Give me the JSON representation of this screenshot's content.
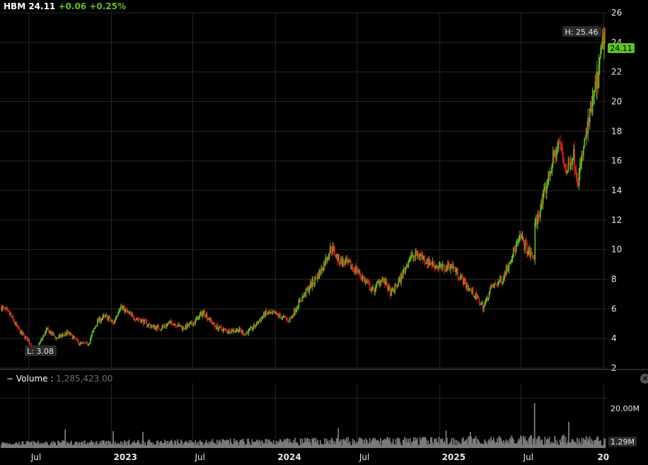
{
  "header": {
    "symbol": "HBM",
    "last": "24.11",
    "change": "+0.06",
    "change_pct": "+0.25%"
  },
  "volume_panel": {
    "collapse_icon": "−",
    "label": "Volume",
    "separator": ":",
    "value": "1,285,423.00",
    "tick_20m": "20.00M",
    "last_badge": "1.29M",
    "close_icon": "×"
  },
  "colors": {
    "up": "#5fc21f",
    "down": "#e32020",
    "grid": "#262626",
    "volume": "#7a7a7a",
    "background": "#000000",
    "last_badge": "#5fc21f"
  },
  "chart_data": {
    "type": "candlestick",
    "title": "HBM",
    "y_ticks": [
      2,
      4,
      6,
      8,
      10,
      12,
      14,
      16,
      18,
      20,
      22,
      24,
      26
    ],
    "ylim": [
      2,
      26
    ],
    "x_tick_labels": [
      "Jul",
      "2023",
      "Jul",
      "2024",
      "Jul",
      "2025",
      "Jul",
      "20"
    ],
    "x_tick_dates": [
      "2022-07-01",
      "2023-01-01",
      "2023-07-01",
      "2024-01-01",
      "2024-07-01",
      "2025-01-01",
      "2025-07-01",
      "2026-01-01"
    ],
    "date_range": [
      "2022-05-01",
      "2026-01-05"
    ],
    "high_label": "H: 25.46",
    "high_value": 25.46,
    "high_date": "2026-01-05",
    "low_label": "L: 3.08",
    "low_value": 3.08,
    "low_date": "2022-07-15",
    "last_price": 24.11,
    "last_price_label": "24.11",
    "price_series": {
      "dates": [
        "2022-05-01",
        "2022-05-20",
        "2022-06-10",
        "2022-07-01",
        "2022-07-15",
        "2022-08-10",
        "2022-09-01",
        "2022-09-25",
        "2022-10-20",
        "2022-11-10",
        "2022-12-01",
        "2022-12-20",
        "2023-01-05",
        "2023-01-20",
        "2023-02-15",
        "2023-03-10",
        "2023-04-01",
        "2023-04-20",
        "2023-05-15",
        "2023-06-10",
        "2023-07-01",
        "2023-07-25",
        "2023-08-20",
        "2023-09-15",
        "2023-10-10",
        "2023-10-25",
        "2023-11-15",
        "2023-12-10",
        "2024-01-05",
        "2024-02-01",
        "2024-02-20",
        "2024-03-15",
        "2024-04-10",
        "2024-05-05",
        "2024-05-20",
        "2024-06-10",
        "2024-07-01",
        "2024-07-20",
        "2024-08-05",
        "2024-08-25",
        "2024-09-15",
        "2024-10-05",
        "2024-10-25",
        "2024-11-15",
        "2024-12-05",
        "2024-12-25",
        "2025-01-10",
        "2025-01-25",
        "2025-02-10",
        "2025-03-01",
        "2025-03-20",
        "2025-04-08",
        "2025-04-25",
        "2025-05-20",
        "2025-06-10",
        "2025-06-30",
        "2025-07-20",
        "2025-07-31",
        "2025-08-01",
        "2025-08-20",
        "2025-09-10",
        "2025-09-25",
        "2025-10-10",
        "2025-10-25",
        "2025-11-05",
        "2025-11-20",
        "2025-12-05",
        "2025-12-20",
        "2026-01-02",
        "2026-01-05"
      ],
      "values": [
        6.1,
        5.6,
        4.5,
        3.8,
        3.1,
        4.6,
        4.0,
        4.4,
        3.7,
        3.6,
        5.2,
        5.5,
        5.0,
        6.2,
        5.5,
        5.2,
        4.8,
        4.7,
        5.1,
        4.7,
        5.0,
        5.8,
        4.8,
        4.5,
        4.6,
        4.3,
        4.8,
        5.7,
        5.6,
        5.2,
        6.3,
        7.4,
        8.5,
        10.2,
        9.3,
        9.0,
        8.6,
        7.8,
        7.2,
        8.1,
        7.0,
        8.0,
        9.4,
        9.7,
        9.2,
        8.9,
        8.7,
        9.0,
        8.4,
        7.6,
        6.9,
        6.1,
        7.4,
        8.0,
        9.6,
        10.8,
        9.7,
        9.5,
        11.6,
        13.5,
        16.1,
        17.2,
        15.2,
        16.5,
        14.7,
        17.3,
        19.6,
        21.8,
        24.6,
        24.11
      ]
    },
    "volume": {
      "ylim": [
        0,
        25
      ],
      "unit": "M",
      "tick": 20,
      "last_value": 1.29,
      "typical_range": [
        1,
        4
      ],
      "spikes": [
        {
          "date": "2022-09-20",
          "value": 7.5
        },
        {
          "date": "2023-01-05",
          "value": 6.8
        },
        {
          "date": "2023-03-12",
          "value": 6.5
        },
        {
          "date": "2024-05-20",
          "value": 8.0
        },
        {
          "date": "2025-01-15",
          "value": 7.0
        },
        {
          "date": "2025-03-10",
          "value": 6.5
        },
        {
          "date": "2025-07-31",
          "value": 18.0
        },
        {
          "date": "2025-10-15",
          "value": 10.5
        }
      ]
    }
  }
}
